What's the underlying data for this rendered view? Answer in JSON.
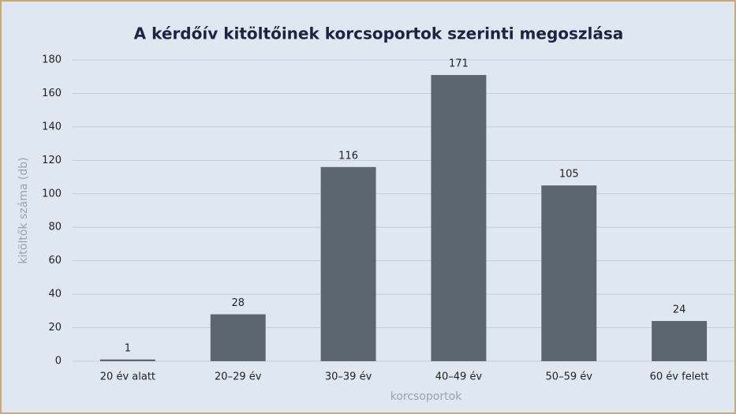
{
  "chart_data": {
    "type": "bar",
    "title": "A kérdőív kitöltőinek korcsoportok szerinti megoszlása",
    "x_label": "korcsoportok",
    "y_label": "kitöltők száma (db)",
    "categories": [
      "20 év alatt",
      "20–29 év",
      "30–39 év",
      "40–49 év",
      "50–59 év",
      "60 év felett"
    ],
    "values": [
      1,
      28,
      116,
      171,
      105,
      24
    ],
    "color": "#5b6670",
    "ylim": [
      0,
      180
    ],
    "yticks": [
      0,
      20,
      40,
      60,
      80,
      100,
      120,
      140,
      160,
      180
    ],
    "grid": true
  }
}
